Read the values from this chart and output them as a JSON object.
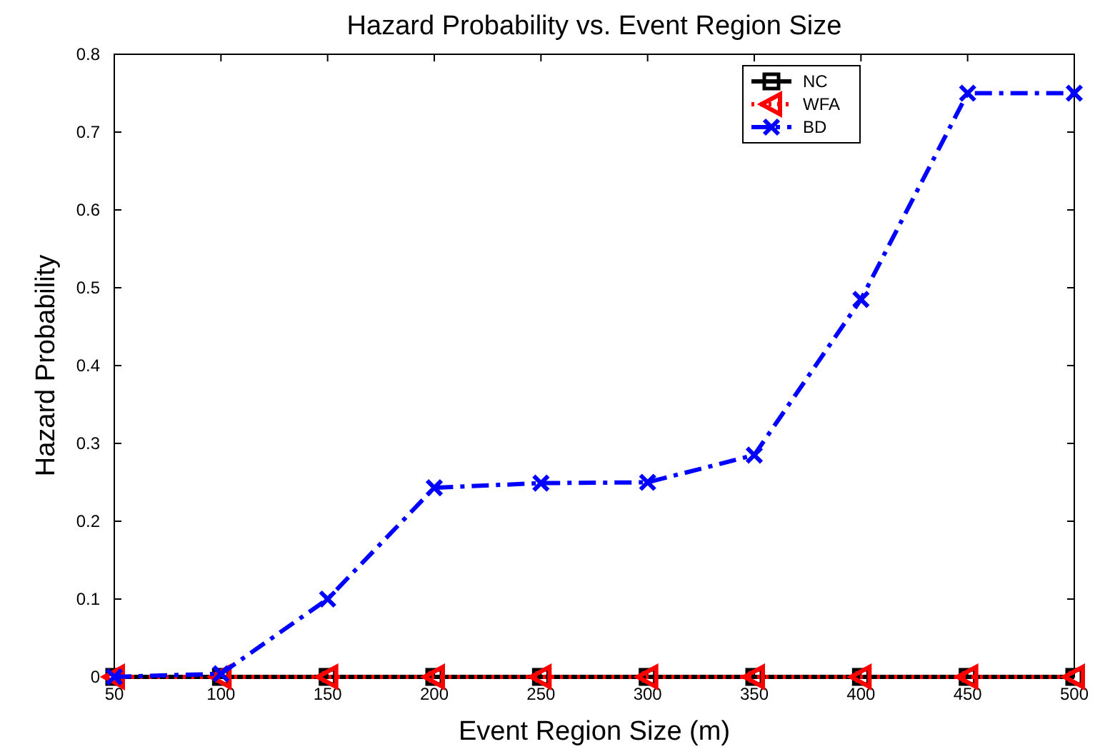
{
  "chart_data": {
    "type": "line",
    "title": "Hazard Probability vs. Event Region Size",
    "xlabel": "Event Region Size (m)",
    "ylabel": "Hazard Probability",
    "x": [
      50,
      100,
      150,
      200,
      250,
      300,
      350,
      400,
      450,
      500
    ],
    "xlim": [
      50,
      500
    ],
    "xticks": [
      50,
      100,
      150,
      200,
      250,
      300,
      350,
      400,
      450,
      500
    ],
    "ylim": [
      0,
      0.8
    ],
    "yticks": [
      0,
      0.1,
      0.2,
      0.3,
      0.4,
      0.5,
      0.6,
      0.7,
      0.8
    ],
    "grid": false,
    "legend": "top right",
    "series": [
      {
        "name": "NC",
        "color": "#000000",
        "marker": "square",
        "line_style": "solid",
        "values": [
          0,
          0,
          0,
          0,
          0,
          0,
          0,
          0,
          0,
          0
        ]
      },
      {
        "name": "WFA",
        "color": "#ff0000",
        "marker": "triangle",
        "line_style": "dotted",
        "values": [
          0,
          0,
          0,
          0,
          0,
          0,
          0,
          0,
          0,
          0
        ]
      },
      {
        "name": "BD",
        "color": "#0000ff",
        "marker": "cross",
        "line_style": "dashed",
        "values": [
          0,
          0.004,
          0.1,
          0.243,
          0.249,
          0.25,
          0.285,
          0.485,
          0.75,
          0.75
        ]
      }
    ]
  }
}
